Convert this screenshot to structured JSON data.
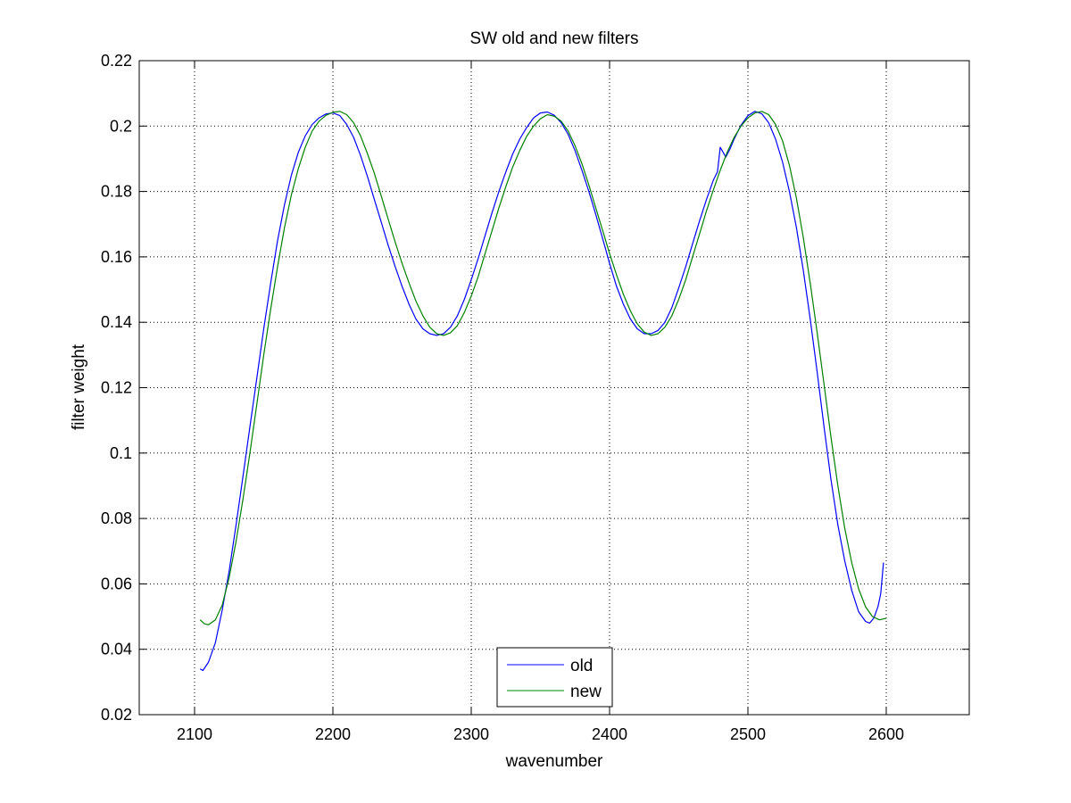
{
  "chart_data": {
    "type": "line",
    "title": "SW old and new filters",
    "xlabel": "wavenumber",
    "ylabel": "filter weight",
    "xlim": [
      2060,
      2660
    ],
    "ylim": [
      0.02,
      0.22
    ],
    "xticks": [
      2100,
      2200,
      2300,
      2400,
      2500,
      2600
    ],
    "yticks": [
      0.02,
      0.04,
      0.06,
      0.08,
      0.1,
      0.12,
      0.14,
      0.16,
      0.18,
      0.2,
      0.22
    ],
    "xtick_labels": [
      "2100",
      "2200",
      "2300",
      "2400",
      "2500",
      "2600"
    ],
    "ytick_labels": [
      "0.02",
      "0.04",
      "0.06",
      "0.08",
      "0.1",
      "0.12",
      "0.14",
      "0.16",
      "0.18",
      "0.2",
      "0.22"
    ],
    "grid": true,
    "legend_position": "bottom-center",
    "series": [
      {
        "name": "old",
        "color": "#0000ff",
        "points": [
          [
            2104,
            0.034
          ],
          [
            2106,
            0.0335
          ],
          [
            2110,
            0.036
          ],
          [
            2115,
            0.042
          ],
          [
            2120,
            0.052
          ],
          [
            2125,
            0.064
          ],
          [
            2130,
            0.078
          ],
          [
            2135,
            0.093
          ],
          [
            2140,
            0.108
          ],
          [
            2145,
            0.123
          ],
          [
            2150,
            0.138
          ],
          [
            2155,
            0.152
          ],
          [
            2160,
            0.165
          ],
          [
            2165,
            0.176
          ],
          [
            2170,
            0.185
          ],
          [
            2175,
            0.192
          ],
          [
            2180,
            0.197
          ],
          [
            2185,
            0.2005
          ],
          [
            2190,
            0.2025
          ],
          [
            2195,
            0.2037
          ],
          [
            2200,
            0.204
          ],
          [
            2205,
            0.2032
          ],
          [
            2210,
            0.2005
          ],
          [
            2215,
            0.1965
          ],
          [
            2220,
            0.191
          ],
          [
            2225,
            0.1845
          ],
          [
            2230,
            0.1775
          ],
          [
            2235,
            0.1705
          ],
          [
            2240,
            0.1635
          ],
          [
            2245,
            0.157
          ],
          [
            2250,
            0.151
          ],
          [
            2255,
            0.1455
          ],
          [
            2260,
            0.141
          ],
          [
            2265,
            0.138
          ],
          [
            2270,
            0.1365
          ],
          [
            2275,
            0.136
          ],
          [
            2280,
            0.1365
          ],
          [
            2285,
            0.1385
          ],
          [
            2290,
            0.142
          ],
          [
            2295,
            0.147
          ],
          [
            2300,
            0.153
          ],
          [
            2305,
            0.1595
          ],
          [
            2310,
            0.1665
          ],
          [
            2315,
            0.1735
          ],
          [
            2320,
            0.18
          ],
          [
            2325,
            0.186
          ],
          [
            2330,
            0.1915
          ],
          [
            2335,
            0.196
          ],
          [
            2340,
            0.1995
          ],
          [
            2345,
            0.2025
          ],
          [
            2350,
            0.204
          ],
          [
            2355,
            0.2043
          ],
          [
            2360,
            0.2033
          ],
          [
            2365,
            0.201
          ],
          [
            2370,
            0.1975
          ],
          [
            2375,
            0.1925
          ],
          [
            2380,
            0.1865
          ],
          [
            2385,
            0.18
          ],
          [
            2390,
            0.173
          ],
          [
            2395,
            0.1655
          ],
          [
            2400,
            0.158
          ],
          [
            2405,
            0.151
          ],
          [
            2410,
            0.1455
          ],
          [
            2415,
            0.141
          ],
          [
            2420,
            0.138
          ],
          [
            2425,
            0.1365
          ],
          [
            2430,
            0.1365
          ],
          [
            2435,
            0.1375
          ],
          [
            2440,
            0.14
          ],
          [
            2445,
            0.1445
          ],
          [
            2450,
            0.1505
          ],
          [
            2455,
            0.157
          ],
          [
            2460,
            0.164
          ],
          [
            2465,
            0.171
          ],
          [
            2470,
            0.1775
          ],
          [
            2475,
            0.1835
          ],
          [
            2478,
            0.186
          ],
          [
            2480,
            0.1935
          ],
          [
            2482,
            0.192
          ],
          [
            2484,
            0.1905
          ],
          [
            2487,
            0.193
          ],
          [
            2490,
            0.196
          ],
          [
            2495,
            0.2003
          ],
          [
            2500,
            0.2032
          ],
          [
            2505,
            0.2045
          ],
          [
            2510,
            0.2038
          ],
          [
            2515,
            0.201
          ],
          [
            2520,
            0.196
          ],
          [
            2525,
            0.189
          ],
          [
            2530,
            0.18
          ],
          [
            2535,
            0.169
          ],
          [
            2540,
            0.156
          ],
          [
            2545,
            0.141
          ],
          [
            2550,
            0.125
          ],
          [
            2555,
            0.108
          ],
          [
            2560,
            0.092
          ],
          [
            2565,
            0.078
          ],
          [
            2570,
            0.067
          ],
          [
            2575,
            0.058
          ],
          [
            2580,
            0.0515
          ],
          [
            2585,
            0.0485
          ],
          [
            2588,
            0.048
          ],
          [
            2591,
            0.0495
          ],
          [
            2594,
            0.053
          ],
          [
            2596,
            0.057
          ],
          [
            2598,
            0.0665
          ]
        ]
      },
      {
        "name": "new",
        "color": "#008000",
        "points": [
          [
            2104,
            0.049
          ],
          [
            2107,
            0.0478
          ],
          [
            2110,
            0.0475
          ],
          [
            2115,
            0.049
          ],
          [
            2120,
            0.0535
          ],
          [
            2125,
            0.062
          ],
          [
            2130,
            0.073
          ],
          [
            2135,
            0.086
          ],
          [
            2140,
            0.1
          ],
          [
            2145,
            0.115
          ],
          [
            2150,
            0.13
          ],
          [
            2155,
            0.144
          ],
          [
            2160,
            0.157
          ],
          [
            2165,
            0.169
          ],
          [
            2170,
            0.179
          ],
          [
            2175,
            0.187
          ],
          [
            2180,
            0.1935
          ],
          [
            2185,
            0.1985
          ],
          [
            2190,
            0.2015
          ],
          [
            2195,
            0.2033
          ],
          [
            2200,
            0.2042
          ],
          [
            2205,
            0.2045
          ],
          [
            2210,
            0.2035
          ],
          [
            2215,
            0.201
          ],
          [
            2220,
            0.197
          ],
          [
            2225,
            0.1915
          ],
          [
            2230,
            0.1855
          ],
          [
            2235,
            0.1785
          ],
          [
            2240,
            0.1715
          ],
          [
            2245,
            0.1645
          ],
          [
            2250,
            0.158
          ],
          [
            2255,
            0.152
          ],
          [
            2260,
            0.1465
          ],
          [
            2265,
            0.142
          ],
          [
            2270,
            0.1385
          ],
          [
            2275,
            0.1365
          ],
          [
            2280,
            0.136
          ],
          [
            2285,
            0.1368
          ],
          [
            2290,
            0.139
          ],
          [
            2295,
            0.143
          ],
          [
            2300,
            0.148
          ],
          [
            2305,
            0.154
          ],
          [
            2310,
            0.161
          ],
          [
            2315,
            0.168
          ],
          [
            2320,
            0.175
          ],
          [
            2325,
            0.1815
          ],
          [
            2330,
            0.1875
          ],
          [
            2335,
            0.1925
          ],
          [
            2340,
            0.1968
          ],
          [
            2345,
            0.2
          ],
          [
            2350,
            0.2022
          ],
          [
            2355,
            0.2035
          ],
          [
            2360,
            0.203
          ],
          [
            2365,
            0.2015
          ],
          [
            2370,
            0.1985
          ],
          [
            2375,
            0.194
          ],
          [
            2380,
            0.1885
          ],
          [
            2385,
            0.182
          ],
          [
            2390,
            0.175
          ],
          [
            2395,
            0.168
          ],
          [
            2400,
            0.161
          ],
          [
            2405,
            0.1545
          ],
          [
            2410,
            0.1485
          ],
          [
            2415,
            0.1435
          ],
          [
            2420,
            0.1395
          ],
          [
            2425,
            0.137
          ],
          [
            2430,
            0.136
          ],
          [
            2435,
            0.1365
          ],
          [
            2440,
            0.1385
          ],
          [
            2445,
            0.142
          ],
          [
            2450,
            0.147
          ],
          [
            2455,
            0.153
          ],
          [
            2460,
            0.16
          ],
          [
            2465,
            0.167
          ],
          [
            2470,
            0.174
          ],
          [
            2475,
            0.1805
          ],
          [
            2480,
            0.1865
          ],
          [
            2485,
            0.192
          ],
          [
            2490,
            0.1965
          ],
          [
            2495,
            0.2
          ],
          [
            2500,
            0.2025
          ],
          [
            2505,
            0.204
          ],
          [
            2510,
            0.2045
          ],
          [
            2515,
            0.2035
          ],
          [
            2520,
            0.2005
          ],
          [
            2525,
            0.1955
          ],
          [
            2530,
            0.188
          ],
          [
            2535,
            0.178
          ],
          [
            2540,
            0.166
          ],
          [
            2545,
            0.152
          ],
          [
            2550,
            0.137
          ],
          [
            2555,
            0.121
          ],
          [
            2560,
            0.105
          ],
          [
            2565,
            0.09
          ],
          [
            2570,
            0.077
          ],
          [
            2575,
            0.0665
          ],
          [
            2580,
            0.0585
          ],
          [
            2585,
            0.053
          ],
          [
            2590,
            0.05
          ],
          [
            2595,
            0.049
          ],
          [
            2600,
            0.0495
          ]
        ]
      }
    ]
  }
}
